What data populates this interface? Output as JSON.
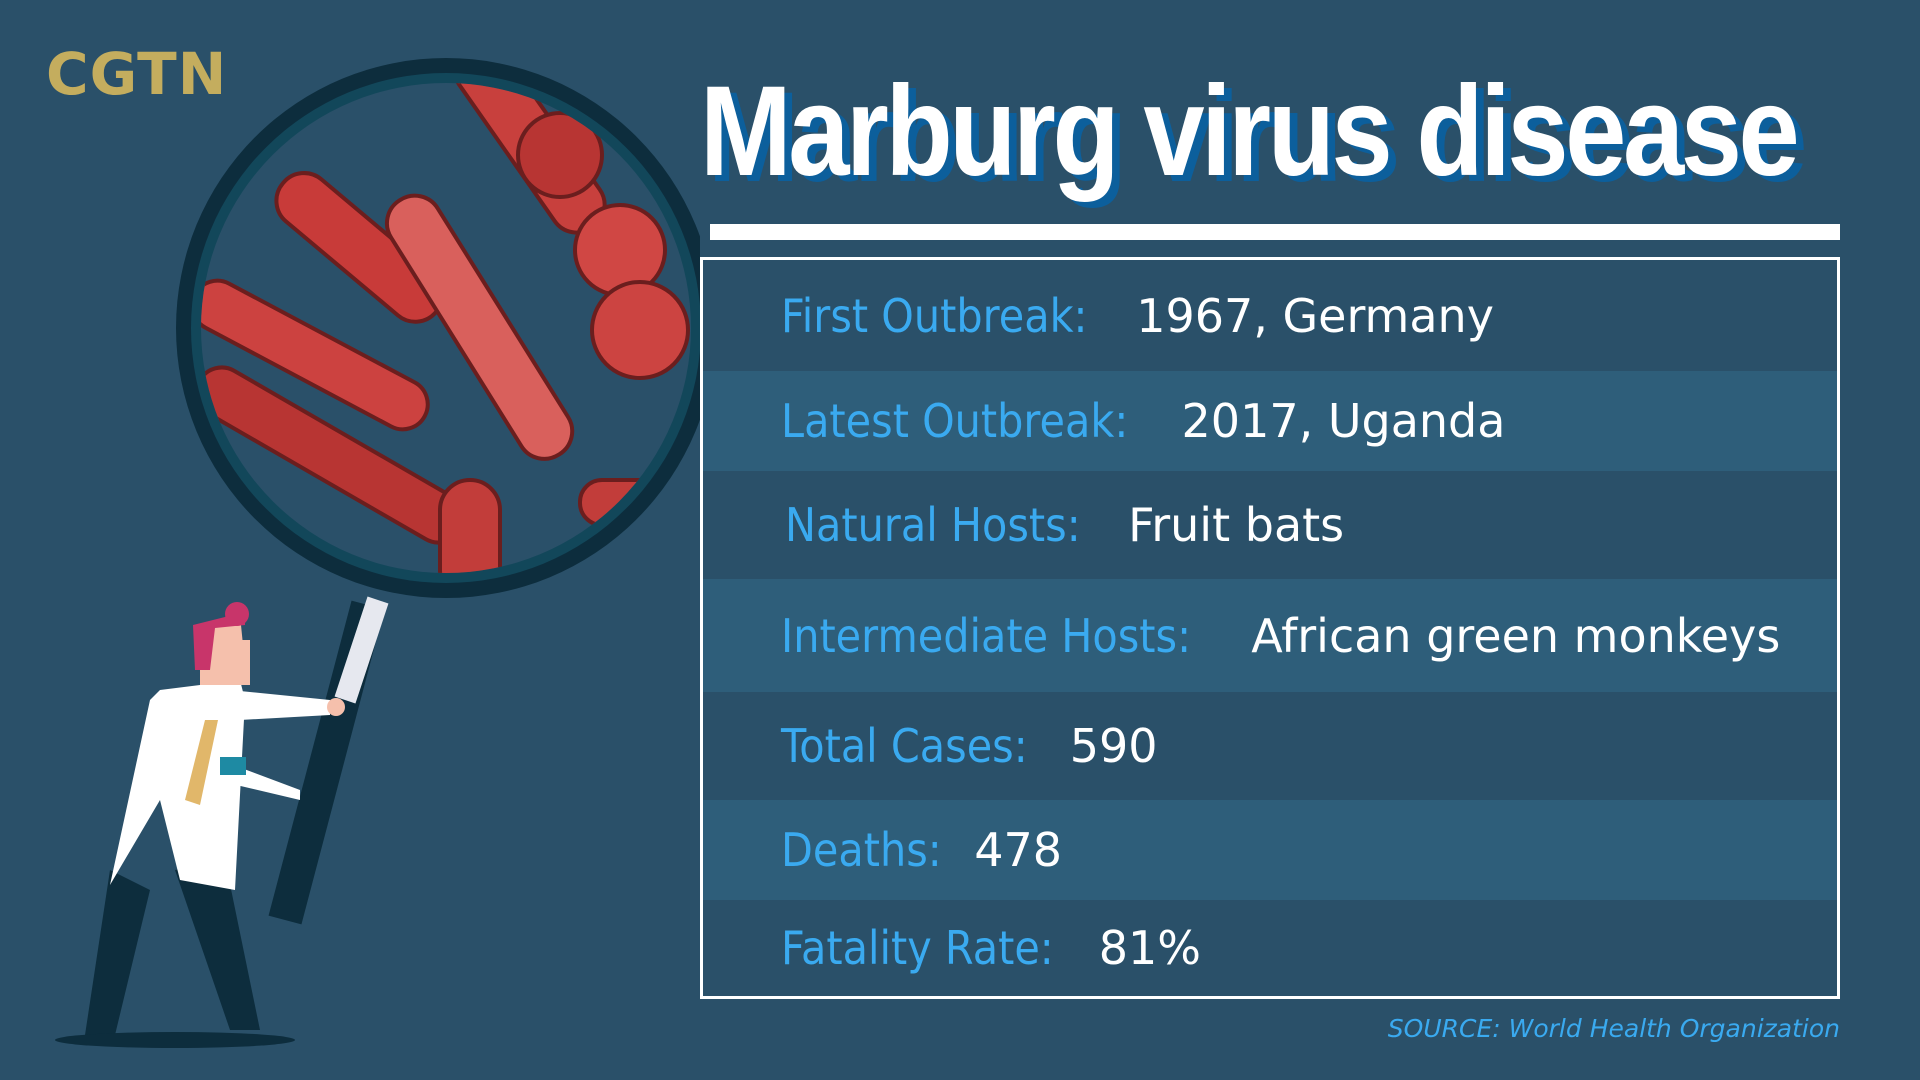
{
  "logo": "CGTN",
  "title": "Marburg virus disease",
  "facts": [
    {
      "label": "First Outbreak:",
      "value": "1967, Germany"
    },
    {
      "label": "Latest Outbreak:",
      "value": "2017, Uganda"
    },
    {
      "label": "Natural Hosts:",
      "value": "Fruit bats"
    },
    {
      "label": "Intermediate Hosts:",
      "value": "African green monkeys"
    },
    {
      "label": "Total Cases:",
      "value": "590"
    },
    {
      "label": "Deaths:",
      "value": "478"
    },
    {
      "label": "Fatality Rate:",
      "value": "81%"
    }
  ],
  "source": "SOURCE: World Health Organization",
  "colors": {
    "background": "#2a5069",
    "label": "#3aaaf0",
    "logo": "#c4ad5e",
    "virus": "#d0433f"
  }
}
